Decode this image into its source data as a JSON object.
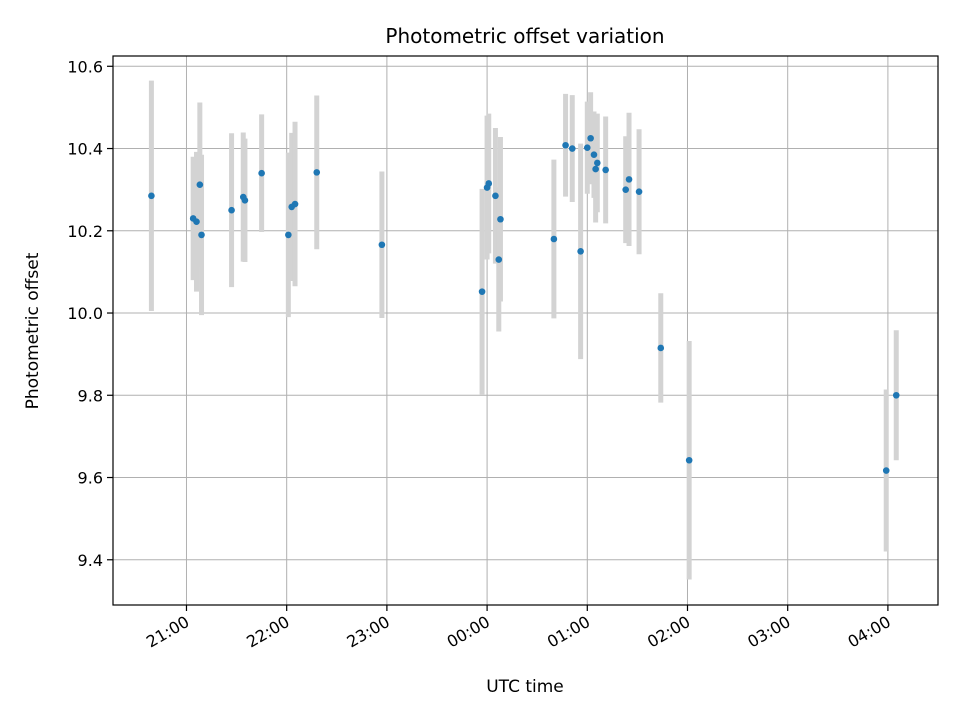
{
  "chart_data": {
    "type": "scatter",
    "title": "Photometric offset variation",
    "xlabel": "UTC time",
    "ylabel": "Photometric offset",
    "x_ticks": [
      "21:00",
      "22:00",
      "23:00",
      "00:00",
      "01:00",
      "02:00",
      "03:00",
      "04:00"
    ],
    "y_ticks": [
      "9.4",
      "9.6",
      "9.8",
      "10.0",
      "10.2",
      "10.4",
      "10.6"
    ],
    "ylim": [
      9.29,
      10.625
    ],
    "xlim": [
      "20:16",
      "04:30"
    ],
    "grid": true,
    "colors": {
      "point": "#1f77b4",
      "errorbar": "#d3d3d3",
      "grid": "#b0b0b0"
    },
    "points": [
      {
        "t": "20:39",
        "y": 10.285,
        "err": 0.28
      },
      {
        "t": "21:04",
        "y": 10.23,
        "err": 0.15
      },
      {
        "t": "21:06",
        "y": 10.222,
        "err": 0.17
      },
      {
        "t": "21:08",
        "y": 10.312,
        "err": 0.2
      },
      {
        "t": "21:09",
        "y": 10.19,
        "err": 0.195
      },
      {
        "t": "21:27",
        "y": 10.25,
        "err": 0.187
      },
      {
        "t": "21:34",
        "y": 10.282,
        "err": 0.157
      },
      {
        "t": "21:35",
        "y": 10.274,
        "err": 0.15
      },
      {
        "t": "21:45",
        "y": 10.34,
        "err": 0.143
      },
      {
        "t": "22:01",
        "y": 10.19,
        "err": 0.2
      },
      {
        "t": "22:03",
        "y": 10.258,
        "err": 0.18
      },
      {
        "t": "22:05",
        "y": 10.265,
        "err": 0.2
      },
      {
        "t": "22:18",
        "y": 10.342,
        "err": 0.187
      },
      {
        "t": "22:57",
        "y": 10.166,
        "err": 0.178
      },
      {
        "t": "23:57",
        "y": 10.052,
        "err": 0.25
      },
      {
        "t": "00:00",
        "y": 10.305,
        "err": 0.175
      },
      {
        "t": "00:01",
        "y": 10.315,
        "err": 0.17
      },
      {
        "t": "00:05",
        "y": 10.285,
        "err": 0.165
      },
      {
        "t": "00:07",
        "y": 10.13,
        "err": 0.175
      },
      {
        "t": "00:08",
        "y": 10.228,
        "err": 0.2
      },
      {
        "t": "00:40",
        "y": 10.18,
        "err": 0.193
      },
      {
        "t": "00:47",
        "y": 10.408,
        "err": 0.125
      },
      {
        "t": "00:51",
        "y": 10.4,
        "err": 0.13
      },
      {
        "t": "00:56",
        "y": 10.15,
        "err": 0.262
      },
      {
        "t": "01:00",
        "y": 10.402,
        "err": 0.112
      },
      {
        "t": "01:02",
        "y": 10.425,
        "err": 0.112
      },
      {
        "t": "01:04",
        "y": 10.385,
        "err": 0.105
      },
      {
        "t": "01:05",
        "y": 10.35,
        "err": 0.13
      },
      {
        "t": "01:06",
        "y": 10.365,
        "err": 0.12
      },
      {
        "t": "01:11",
        "y": 10.348,
        "err": 0.13
      },
      {
        "t": "01:23",
        "y": 10.3,
        "err": 0.13
      },
      {
        "t": "01:25",
        "y": 10.325,
        "err": 0.162
      },
      {
        "t": "01:31",
        "y": 10.295,
        "err": 0.152
      },
      {
        "t": "01:44",
        "y": 9.915,
        "err": 0.133
      },
      {
        "t": "02:01",
        "y": 9.642,
        "err": 0.29
      },
      {
        "t": "03:59",
        "y": 9.617,
        "err": 0.197
      },
      {
        "t": "04:05",
        "y": 9.8,
        "err": 0.158
      }
    ]
  }
}
